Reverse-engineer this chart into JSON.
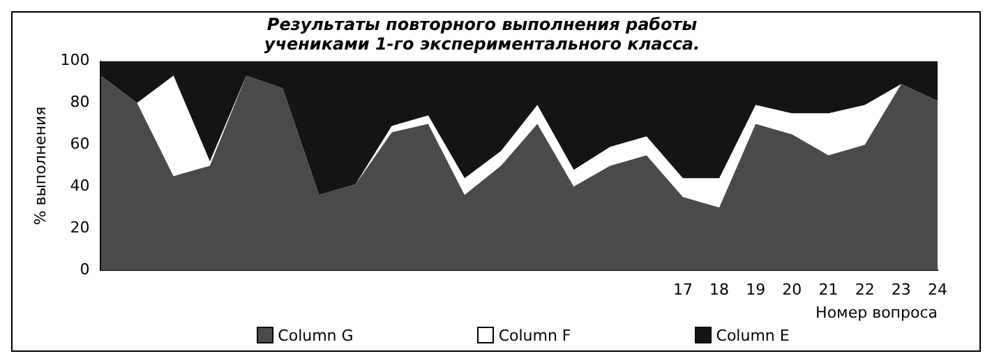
{
  "chart_data": {
    "type": "area",
    "stacked": true,
    "title": "Результаты повторного выполнения работы учениками 1-го экспериментального класса.",
    "xlabel": "Номер вопроса",
    "ylabel": "% выполнения",
    "categories": [
      null,
      null,
      null,
      null,
      null,
      null,
      null,
      null,
      null,
      null,
      null,
      null,
      null,
      null,
      null,
      null,
      "17",
      "18",
      "19",
      "20",
      "21",
      "22",
      "23",
      "24"
    ],
    "series": [
      {
        "name": "Column G",
        "color": "#4a4a4a",
        "values": [
          93,
          80,
          45,
          50,
          93,
          87,
          36,
          41,
          66,
          70,
          36,
          50,
          70,
          40,
          50,
          55,
          35,
          30,
          70,
          65,
          55,
          60,
          89,
          81
        ]
      },
      {
        "name": "Column F",
        "color": "#ffffff",
        "values": [
          0,
          0,
          48,
          2,
          0,
          0,
          0,
          0,
          3,
          4,
          8,
          7,
          9,
          8,
          9,
          9,
          9,
          14,
          9,
          10,
          20,
          19,
          0,
          0
        ]
      },
      {
        "name": "Column E",
        "color": "#141414",
        "values": [
          7,
          20,
          7,
          48,
          7,
          13,
          64,
          59,
          31,
          26,
          56,
          43,
          21,
          52,
          41,
          36,
          56,
          56,
          21,
          25,
          25,
          21,
          11,
          19
        ]
      }
    ],
    "ylim": [
      0,
      100
    ],
    "yticks": [
      0,
      20,
      40,
      60,
      80,
      100
    ],
    "legend": "bottom"
  }
}
